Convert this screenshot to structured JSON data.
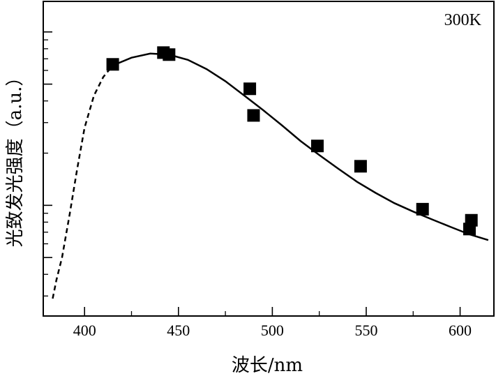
{
  "chart_data": {
    "type": "scatter",
    "annotation": "300K",
    "xlabel": "波长/nm",
    "ylabel": "光致发光强度（a.u.）",
    "xlim": [
      378,
      618
    ],
    "x_ticks": [
      400,
      450,
      500,
      550,
      600
    ],
    "y_scale": "log",
    "ylim": [
      0.23,
      15
    ],
    "y_major_ticks": [
      0.5,
      1,
      5,
      10
    ],
    "y_minor_ticks": [
      0.3,
      0.4,
      0.6,
      0.7,
      0.8,
      0.9,
      2,
      3,
      4,
      6,
      7,
      8,
      9
    ],
    "grid": false,
    "series": [
      {
        "kind": "points",
        "marker": "square",
        "x": [
          415,
          442,
          445,
          488,
          490,
          524,
          547,
          580,
          605,
          606
        ],
        "y": [
          6.5,
          7.6,
          7.4,
          4.7,
          3.3,
          2.2,
          1.68,
          0.95,
          0.73,
          0.82
        ]
      },
      {
        "kind": "fit",
        "style": "dashed",
        "x": [
          383,
          385,
          388,
          392,
          396,
          400,
          405,
          410,
          415
        ],
        "y": [
          0.29,
          0.37,
          0.5,
          0.88,
          1.6,
          2.8,
          4.3,
          5.5,
          6.4
        ]
      },
      {
        "kind": "fit",
        "style": "solid",
        "x": [
          415,
          425,
          435,
          445,
          455,
          465,
          475,
          485,
          495,
          505,
          515,
          525,
          535,
          545,
          555,
          565,
          575,
          585,
          595,
          605,
          615
        ],
        "y": [
          6.4,
          7.1,
          7.5,
          7.4,
          6.9,
          6.1,
          5.2,
          4.3,
          3.55,
          2.9,
          2.35,
          1.95,
          1.63,
          1.37,
          1.18,
          1.03,
          0.92,
          0.83,
          0.75,
          0.68,
          0.63
        ]
      }
    ]
  }
}
